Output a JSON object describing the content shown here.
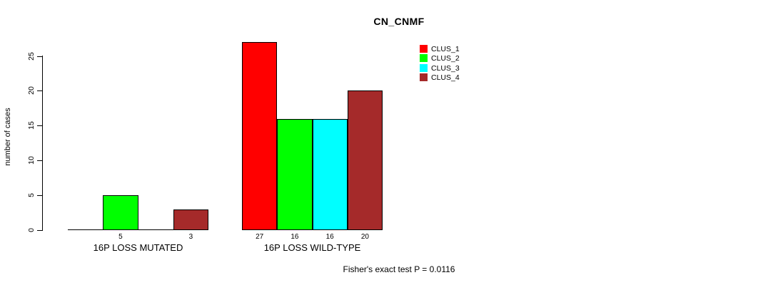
{
  "chart_data": {
    "type": "bar",
    "title": "CN_CNMF",
    "ylabel": "number of cases",
    "xlabel": "",
    "ylim": [
      0,
      25
    ],
    "yticks": [
      0,
      5,
      10,
      15,
      20,
      25
    ],
    "grid": false,
    "legend_position": "top-right",
    "series": [
      {
        "name": "CLUS_1",
        "color": "#FF0000"
      },
      {
        "name": "CLUS_2",
        "color": "#00FF00"
      },
      {
        "name": "CLUS_3",
        "color": "#00FFFF"
      },
      {
        "name": "CLUS_4",
        "color": "#A52A2A"
      }
    ],
    "groups": [
      {
        "label": "16P LOSS MUTATED",
        "values": [
          0,
          5,
          0,
          3
        ]
      },
      {
        "label": "16P LOSS WILD-TYPE",
        "values": [
          27,
          16,
          16,
          20
        ]
      }
    ],
    "shown_bar_labels": [
      "5",
      "3",
      "27",
      "16",
      "16",
      "20"
    ],
    "footnote": "Fisher's exact test P = 0.0116"
  }
}
